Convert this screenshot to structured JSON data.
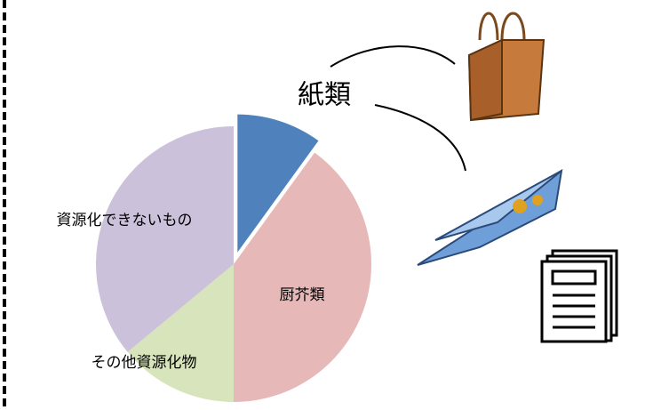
{
  "chart_data": {
    "type": "pie",
    "categories": [
      "紙類",
      "厨芥類",
      "その他資源化物",
      "資源化できないもの"
    ],
    "values": [
      10,
      40,
      14,
      36
    ],
    "colors": [
      "#4f81bd",
      "#e6b9b8",
      "#d7e4bc",
      "#ccc1da"
    ],
    "explode": [
      true,
      false,
      false,
      false
    ]
  }
}
